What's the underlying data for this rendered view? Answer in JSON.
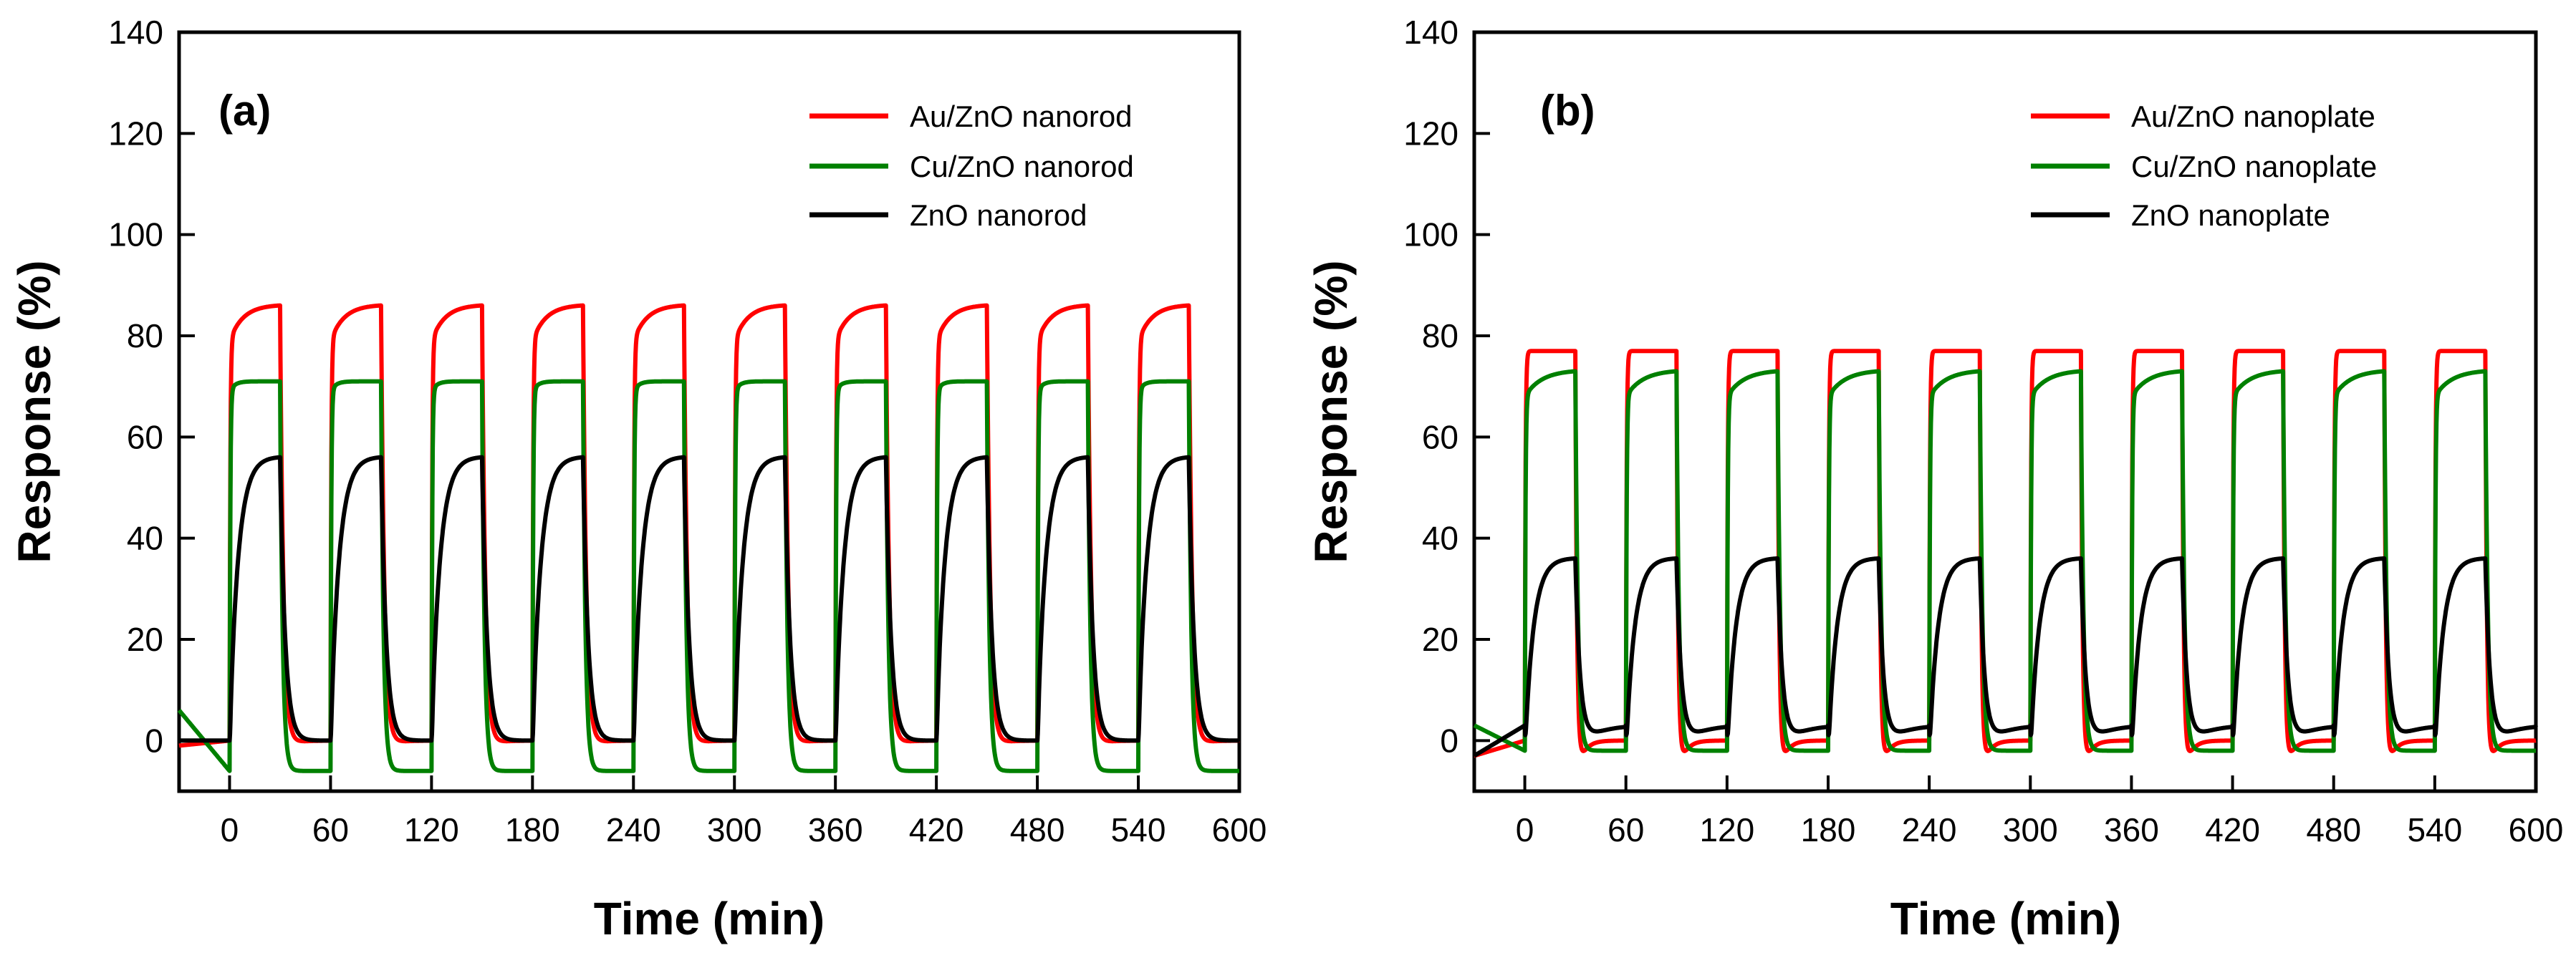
{
  "colors": {
    "red": "#ff0000",
    "green": "#008000",
    "black": "#000000"
  },
  "chart_data": [
    {
      "type": "line",
      "panel_label": "(a)",
      "xlabel": "Time (min)",
      "ylabel": "Response (%)",
      "xlim": [
        -30,
        600
      ],
      "ylim": [
        -10,
        140
      ],
      "xticks": [
        "0",
        "60",
        "120",
        "180",
        "240",
        "300",
        "360",
        "420",
        "480",
        "540",
        "600"
      ],
      "yticks": [
        "0",
        "20",
        "40",
        "60",
        "80",
        "100",
        "120",
        "140"
      ],
      "cycle": {
        "period_min": 60,
        "exposure_min": 30,
        "cycles": 10
      },
      "legend_position": "top-right",
      "series": [
        {
          "name": "Au/ZnO nanorod",
          "color": "#ff0000",
          "baseline": 0,
          "pre_start": -1,
          "on_start": 79,
          "on_end": 86,
          "off_min": -2,
          "on_tau": 8,
          "off_tau": 2,
          "recover_tau": 6
        },
        {
          "name": "Cu/ZnO nanorod",
          "color": "#008000",
          "baseline": -6,
          "pre_start": 6,
          "on_start": 69,
          "on_end": 71,
          "off_min": -6,
          "on_tau": 3,
          "off_tau": 1.5,
          "recover_tau": 10
        },
        {
          "name": "ZnO nanorod",
          "color": "#000000",
          "baseline": 0,
          "pre_start": 0,
          "on_start": 0,
          "on_end": 56,
          "off_min": 0,
          "on_tau": 5,
          "off_tau": 3,
          "recover_tau": 6
        }
      ]
    },
    {
      "type": "line",
      "panel_label": "(b)",
      "xlabel": "Time (min)",
      "ylabel": "Response (%)",
      "xlim": [
        -30,
        600
      ],
      "ylim": [
        -10,
        140
      ],
      "xticks": [
        "0",
        "60",
        "120",
        "180",
        "240",
        "300",
        "360",
        "420",
        "480",
        "540",
        "600"
      ],
      "yticks": [
        "0",
        "20",
        "40",
        "60",
        "80",
        "100",
        "120",
        "140"
      ],
      "cycle": {
        "period_min": 60,
        "exposure_min": 30,
        "cycles": 10
      },
      "legend_position": "top-right",
      "series": [
        {
          "name": "Au/ZnO nanoplate",
          "color": "#ff0000",
          "baseline": 0,
          "pre_start": -3,
          "on_start": 77,
          "on_end": 77,
          "off_min": -9,
          "on_tau": 1,
          "off_tau": 1,
          "recover_tau": 4
        },
        {
          "name": "Cu/ZnO nanoplate",
          "color": "#008000",
          "baseline": -2,
          "pre_start": 3,
          "on_start": 68,
          "on_end": 73,
          "off_min": -2,
          "on_tau": 10,
          "off_tau": 1.5,
          "recover_tau": 8
        },
        {
          "name": "ZnO nanoplate",
          "color": "#000000",
          "baseline": 3,
          "pre_start": -3,
          "on_start": -3,
          "on_end": 36,
          "off_min": -3,
          "on_tau": 5,
          "off_tau": 3,
          "recover_tau": 10
        }
      ]
    }
  ]
}
